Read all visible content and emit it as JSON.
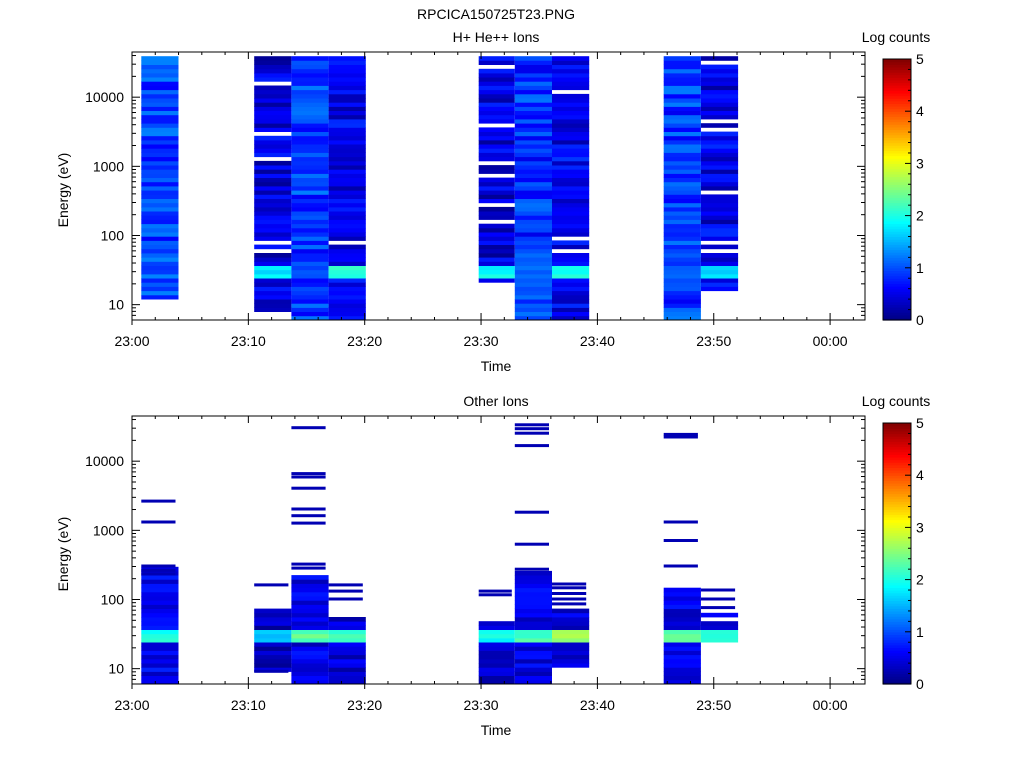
{
  "figure": {
    "title": "RPCICA150725T23.PNG"
  },
  "colors": {
    "axis": "#000000",
    "background": "#ffffff"
  },
  "chart_data": [
    {
      "type": "heatmap",
      "title": "H+ He++ Ions",
      "xlabel": "Time",
      "ylabel": "Energy (eV)",
      "y_scale": "log",
      "ylim": [
        6,
        45000
      ],
      "xlim": [
        "23:00",
        "00:03"
      ],
      "x_tick_labels": [
        "23:00",
        "23:10",
        "23:20",
        "23:30",
        "23:40",
        "23:50",
        "00:00"
      ],
      "y_tick_labels": [
        "10",
        "100",
        "1000",
        "10000"
      ],
      "colorbar": {
        "label": "Log counts",
        "range": [
          0,
          5
        ],
        "ticks": [
          "0",
          "1",
          "2",
          "3",
          "4",
          "5"
        ],
        "colormap": "jet"
      },
      "columns": [
        {
          "start": "23:00.8",
          "end": "23:04.0",
          "seed": 3,
          "base": 0.95,
          "low_min": 12,
          "peak": null,
          "top": 40000,
          "gaps": false
        },
        {
          "start": "23:10.5",
          "end": "23:13.7",
          "seed": 11,
          "base": 0.45,
          "low_min": 8,
          "peak": 1.65,
          "top": 40000,
          "gaps": true
        },
        {
          "start": "23:13.7",
          "end": "23:16.9",
          "seed": 17,
          "base": 0.9,
          "low_min": 6,
          "peak": 0.9,
          "top": 40000,
          "gaps": false
        },
        {
          "start": "23:16.9",
          "end": "23:20.1",
          "seed": 23,
          "base": 0.5,
          "low_min": 6,
          "peak": 1.9,
          "top": 40000,
          "gaps": true
        },
        {
          "start": "23:29.8",
          "end": "23:32.9",
          "seed": 29,
          "base": 0.45,
          "low_min": 20,
          "peak": 1.75,
          "top": 40000,
          "gaps": true
        },
        {
          "start": "23:32.9",
          "end": "23:36.1",
          "seed": 37,
          "base": 0.85,
          "low_min": 6,
          "peak": 0.9,
          "top": 40000,
          "gaps": false
        },
        {
          "start": "23:36.1",
          "end": "23:39.3",
          "seed": 41,
          "base": 0.55,
          "low_min": 6,
          "peak": 1.8,
          "top": 40000,
          "gaps": true
        },
        {
          "start": "23:45.7",
          "end": "23:48.9",
          "seed": 47,
          "base": 0.9,
          "low_min": 6,
          "peak": 0.95,
          "top": 40000,
          "gaps": false
        },
        {
          "start": "23:48.9",
          "end": "23:52.1",
          "seed": 53,
          "base": 0.5,
          "low_min": 15,
          "peak": 1.6,
          "top": 40000,
          "gaps": true
        }
      ]
    },
    {
      "type": "heatmap",
      "title": "Other Ions",
      "xlabel": "Time",
      "ylabel": "Energy (eV)",
      "y_scale": "log",
      "ylim": [
        6,
        45000
      ],
      "xlim": [
        "23:00",
        "00:03"
      ],
      "x_tick_labels": [
        "23:00",
        "23:10",
        "23:20",
        "23:30",
        "23:40",
        "23:50",
        "00:00"
      ],
      "y_tick_labels": [
        "10",
        "100",
        "1000",
        "10000"
      ],
      "colorbar": {
        "label": "Log counts",
        "range": [
          0,
          5
        ],
        "ticks": [
          "0",
          "1",
          "2",
          "3",
          "4",
          "5"
        ],
        "colormap": "jet"
      },
      "columns": [
        {
          "start": "23:00.8",
          "end": "23:04.0",
          "seed": 5,
          "base": 0.55,
          "low_min": 6,
          "peak": 1.85,
          "dense_top": 330,
          "lines": [
            2600,
            1300,
            300,
            260,
            230
          ]
        },
        {
          "start": "23:10.5",
          "end": "23:13.7",
          "seed": 13,
          "base": 0.3,
          "low_min": 9,
          "peak": 1.5,
          "dense_top": 70,
          "lines": [
            160,
            9
          ]
        },
        {
          "start": "23:13.7",
          "end": "23:16.9",
          "seed": 19,
          "base": 0.5,
          "low_min": 6,
          "peak": 2.2,
          "dense_top": 220,
          "lines": [
            30000,
            6500,
            5800,
            4000,
            2000,
            1600,
            1250,
            320,
            280
          ]
        },
        {
          "start": "23:16.9",
          "end": "23:20.1",
          "seed": 25,
          "base": 0.4,
          "low_min": 6,
          "peak": 2.0,
          "dense_top": 60,
          "lines": [
            160,
            130,
            100
          ]
        },
        {
          "start": "23:29.8",
          "end": "23:32.9",
          "seed": 31,
          "base": 0.35,
          "low_min": 6,
          "peak": 1.8,
          "dense_top": 50,
          "lines": [
            130,
            115
          ]
        },
        {
          "start": "23:32.9",
          "end": "23:36.1",
          "seed": 39,
          "base": 0.5,
          "low_min": 6,
          "peak": 2.1,
          "dense_top": 250,
          "lines": [
            33000,
            29000,
            25000,
            16500,
            1800,
            620,
            270
          ]
        },
        {
          "start": "23:36.1",
          "end": "23:39.3",
          "seed": 43,
          "base": 0.45,
          "low_min": 10,
          "peak": 2.5,
          "dense_top": 70,
          "lines": [
            165,
            145,
            120,
            100,
            85
          ]
        },
        {
          "start": "23:45.7",
          "end": "23:48.9",
          "seed": 49,
          "base": 0.5,
          "low_min": 6,
          "peak": 2.2,
          "dense_top": 170,
          "lines": [
            24000,
            22000,
            1300,
            700,
            300
          ]
        },
        {
          "start": "23:48.9",
          "end": "23:52.1",
          "seed": 55,
          "base": 0.4,
          "low_min": 25,
          "peak": 1.9,
          "dense_top": 60,
          "lines": [
            135,
            100,
            75
          ]
        }
      ]
    }
  ]
}
